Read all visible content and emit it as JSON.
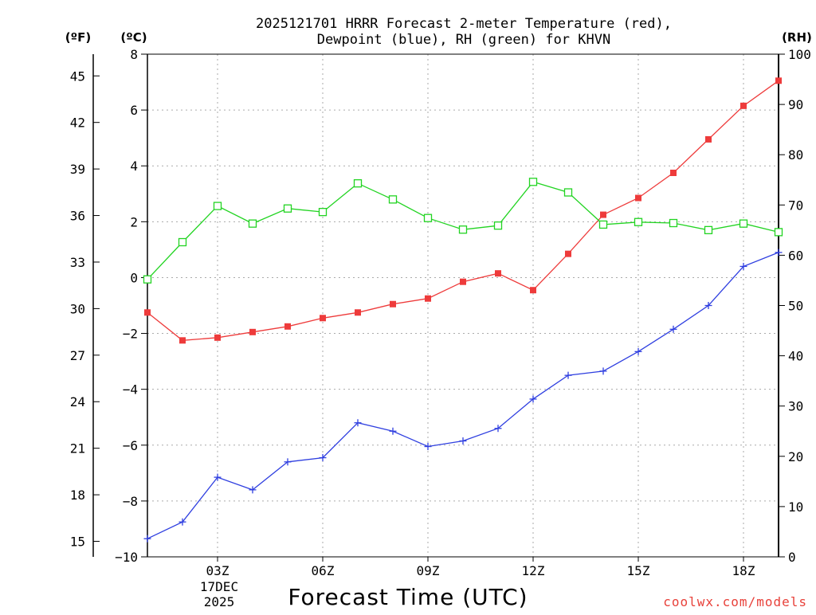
{
  "chart_data": {
    "type": "line",
    "title_line1": "2025121701 HRRR Forecast 2-meter Temperature (red),",
    "title_line2": "Dewpoint (blue), RH (green) for KHVN",
    "xlabel": "Forecast Time (UTC)",
    "credit": "coolwx.com/models",
    "date_label": {
      "day": "17DEC",
      "year": "2025"
    },
    "units": {
      "fahrenheit": "(ºF)",
      "celsius": "(ºC)",
      "rh": "(RH)"
    },
    "x_hours": [
      1,
      2,
      3,
      4,
      5,
      6,
      7,
      8,
      9,
      10,
      11,
      12,
      13,
      14,
      15,
      16,
      17,
      18,
      19
    ],
    "x_ticks": [
      {
        "hour": 3,
        "label": "03Z"
      },
      {
        "hour": 6,
        "label": "06Z"
      },
      {
        "hour": 9,
        "label": "09Z"
      },
      {
        "hour": 12,
        "label": "12Z"
      },
      {
        "hour": 15,
        "label": "15Z"
      },
      {
        "hour": 18,
        "label": "18Z"
      }
    ],
    "xlim": [
      1,
      19
    ],
    "celsius_axis": {
      "ylim": [
        -10,
        8
      ],
      "ticks": [
        8,
        6,
        4,
        2,
        0,
        -2,
        -4,
        -6,
        -8,
        -10
      ]
    },
    "fahrenheit_axis": {
      "ylim": [
        14,
        46.4
      ],
      "ticks": [
        45,
        42,
        39,
        36,
        33,
        30,
        27,
        24,
        21,
        18,
        15
      ]
    },
    "rh_axis": {
      "ylim": [
        0,
        100
      ],
      "ticks": [
        100,
        90,
        80,
        70,
        60,
        50,
        40,
        30,
        20,
        10,
        0
      ]
    },
    "series": [
      {
        "name": "Temperature",
        "axis": "celsius",
        "color": "#ee3b3b",
        "marker": "filled-square",
        "values": [
          -1.25,
          -2.25,
          -2.15,
          -1.95,
          -1.75,
          -1.45,
          -1.25,
          -0.95,
          -0.75,
          -0.15,
          0.15,
          -0.45,
          0.85,
          2.25,
          2.85,
          3.75,
          4.95,
          6.15,
          7.05
        ]
      },
      {
        "name": "Dewpoint",
        "axis": "celsius",
        "color": "#2f3fe0",
        "marker": "plus",
        "values": [
          -9.35,
          -8.75,
          -7.15,
          -7.6,
          -6.6,
          -6.45,
          -5.2,
          -5.5,
          -6.05,
          -5.85,
          -5.4,
          -4.35,
          -3.5,
          -3.35,
          -2.65,
          -1.85,
          -1.0,
          0.4,
          0.9
        ]
      },
      {
        "name": "RH",
        "axis": "rh",
        "color": "#22d422",
        "marker": "open-square",
        "values": [
          55.2,
          62.6,
          69.8,
          66.3,
          69.3,
          68.6,
          74.3,
          71.1,
          67.4,
          65.1,
          65.9,
          74.6,
          72.5,
          66.1,
          66.6,
          66.4,
          65.0,
          66.3,
          64.6
        ]
      }
    ]
  }
}
